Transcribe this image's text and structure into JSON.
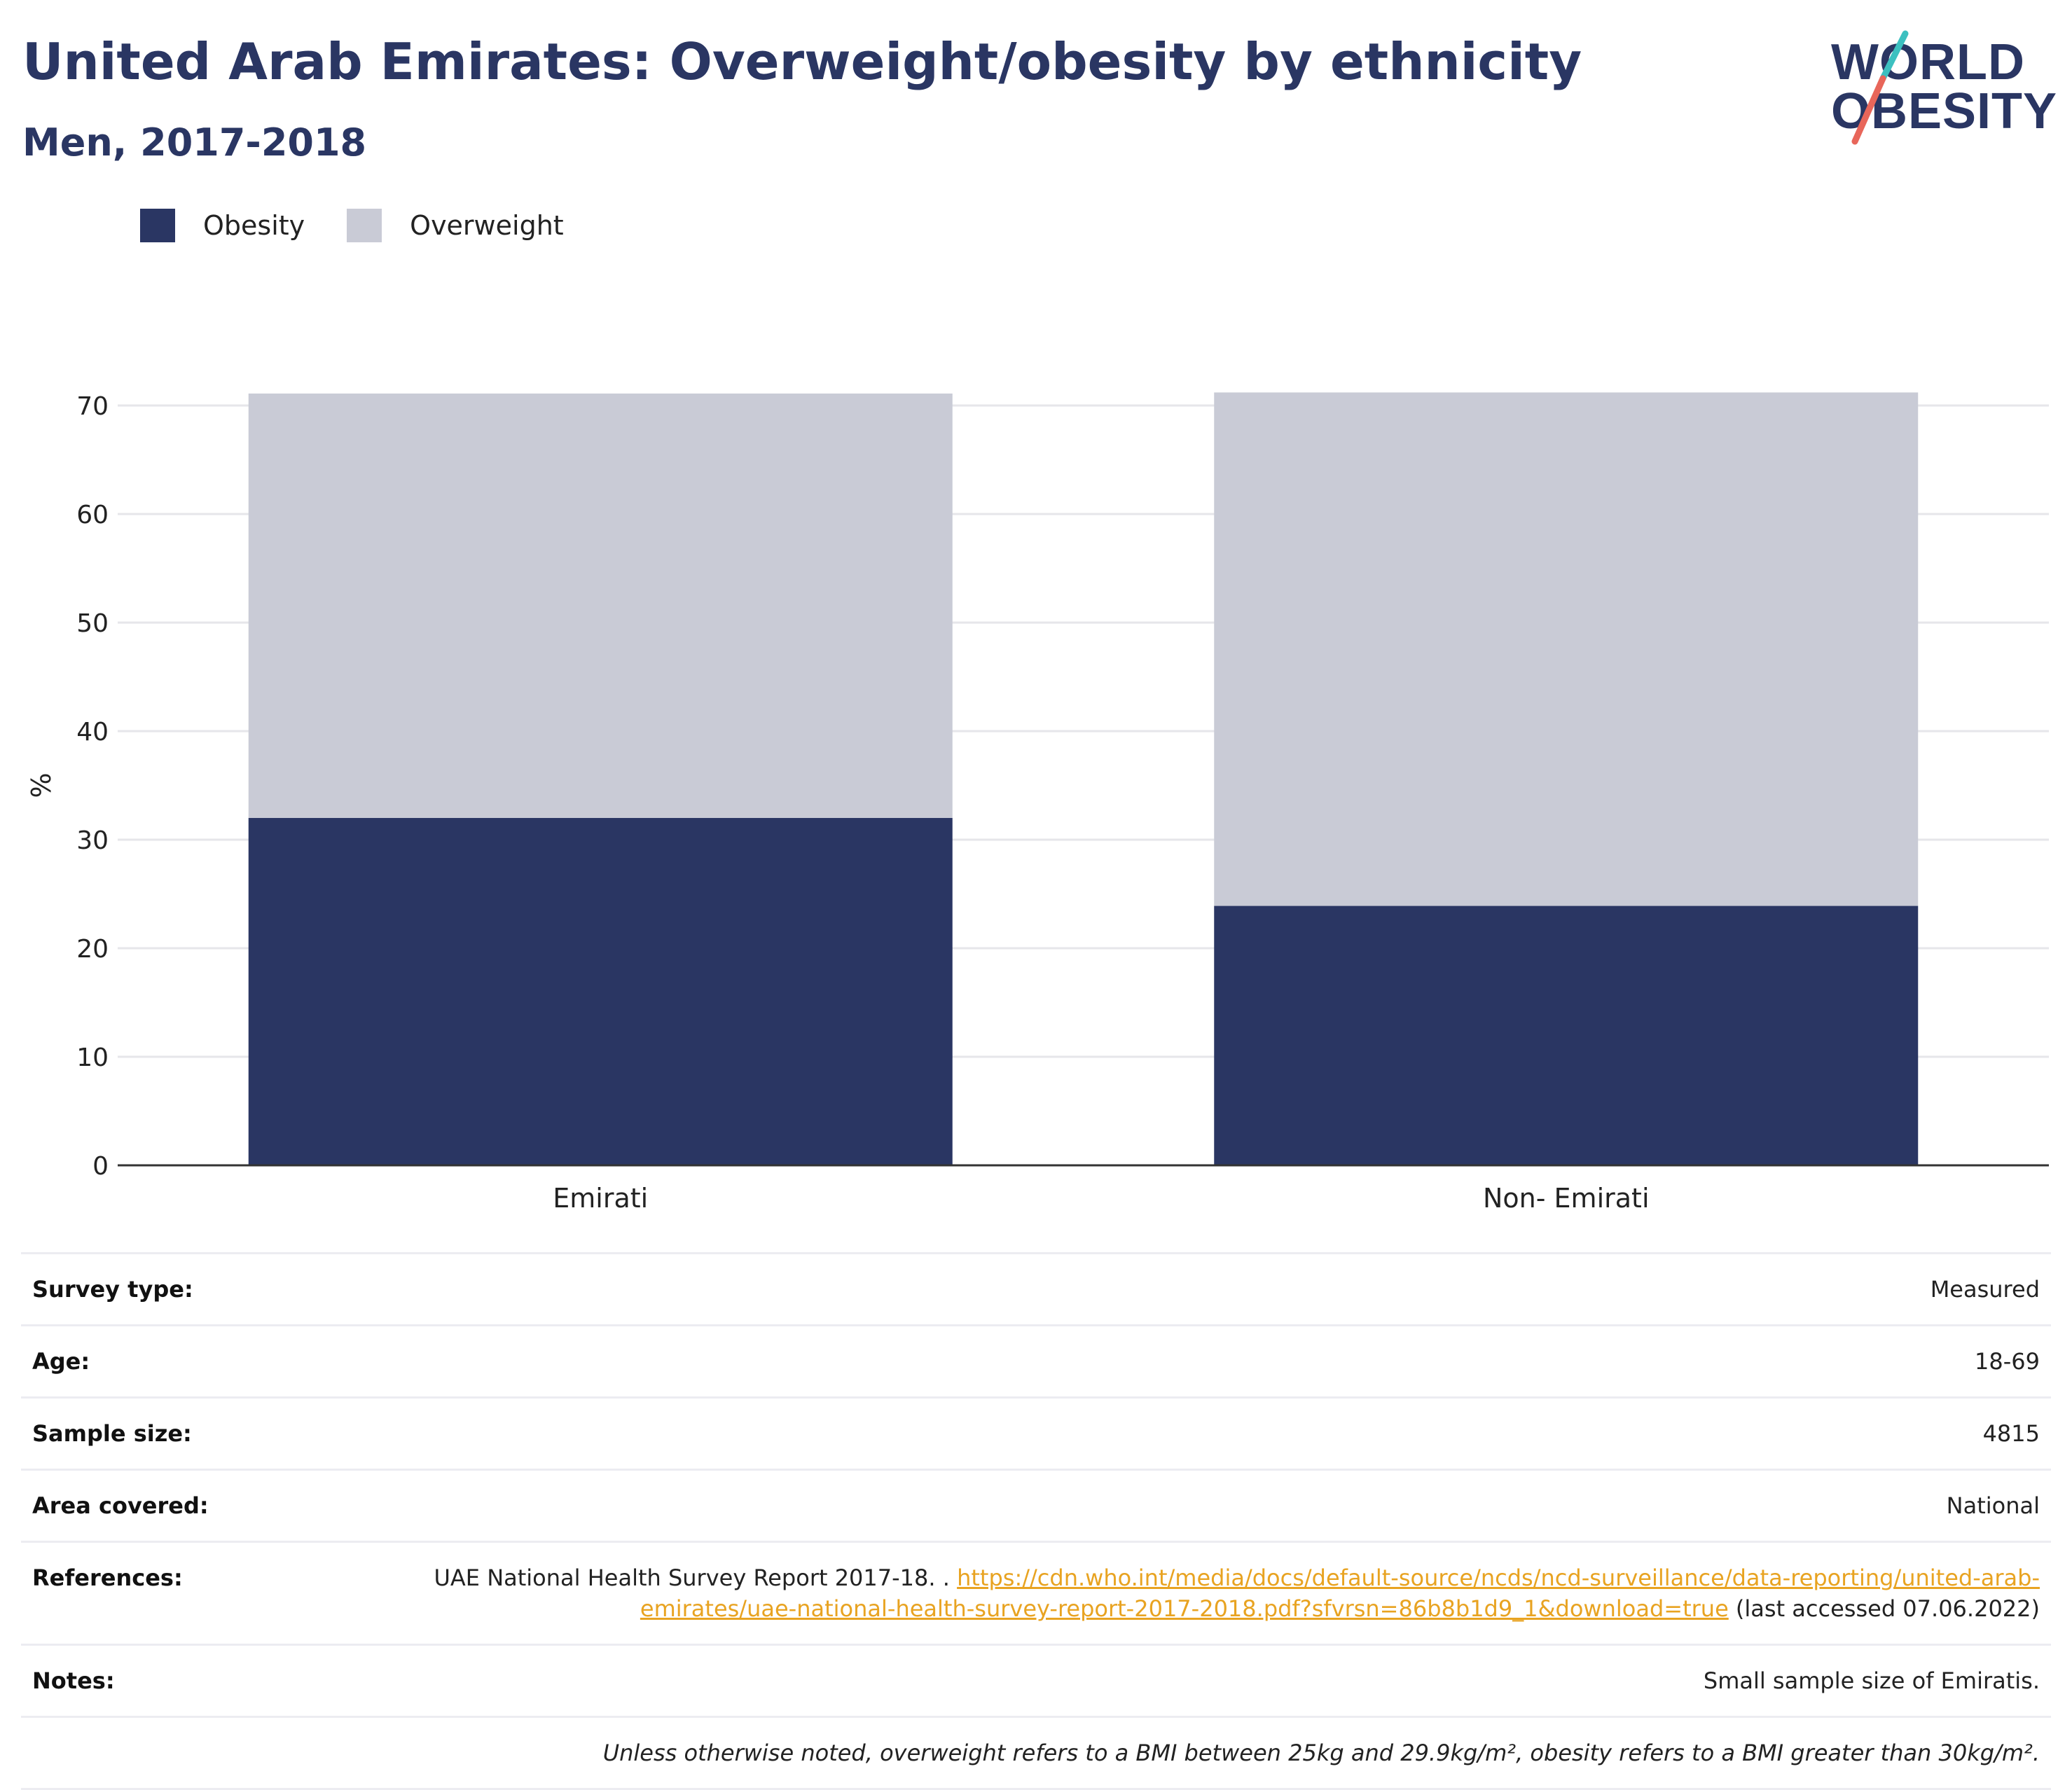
{
  "header": {
    "title": "United Arab Emirates: Overweight/obesity by ethnicity",
    "subtitle": "Men, 2017-2018"
  },
  "logo": {
    "line1": "WORLD",
    "line2": "OBESITY",
    "accent1": "#3cc0c0",
    "accent2": "#e8665a"
  },
  "colors": {
    "obesity": "#2a3663",
    "overweight": "#c9cbd6",
    "grid": "#e6e6ea",
    "axis": "#333333"
  },
  "legend": [
    {
      "label": "Obesity",
      "color": "#2a3663"
    },
    {
      "label": "Overweight",
      "color": "#c9cbd6"
    }
  ],
  "chart_data": {
    "type": "bar",
    "stacked": true,
    "categories": [
      "Emirati",
      "Non- Emirati"
    ],
    "series": [
      {
        "name": "Obesity",
        "values": [
          32.0,
          23.9
        ]
      },
      {
        "name": "Overweight",
        "values": [
          39.1,
          47.3
        ]
      }
    ],
    "ylabel": "%",
    "ylim": [
      0,
      70
    ],
    "yticks": [
      0,
      10,
      20,
      30,
      40,
      50,
      60,
      70
    ],
    "grid": true,
    "legend_position": "top-left"
  },
  "info": {
    "survey_type": {
      "label": "Survey type:",
      "value": "Measured"
    },
    "age": {
      "label": "Age:",
      "value": "18-69"
    },
    "sample_size": {
      "label": "Sample size:",
      "value": "4815"
    },
    "area_covered": {
      "label": "Area covered:",
      "value": "National"
    },
    "references": {
      "label": "References:",
      "text": "UAE National Health Survey Report 2017-18. . ",
      "link": "https://cdn.who.int/media/docs/default-source/ncds/ncd-surveillance/data-reporting/united-arab-emirates/uae-national-health-survey-report-2017-2018.pdf?sfvrsn=86b8b1d9_1&download=true",
      "suffix": " (last accessed 07.06.2022)"
    },
    "notes": {
      "label": "Notes:",
      "value": "Small sample size of Emiratis."
    },
    "footnote": "Unless otherwise noted, overweight refers to a BMI between 25kg and 29.9kg/m², obesity refers to a BMI greater than 30kg/m²."
  }
}
